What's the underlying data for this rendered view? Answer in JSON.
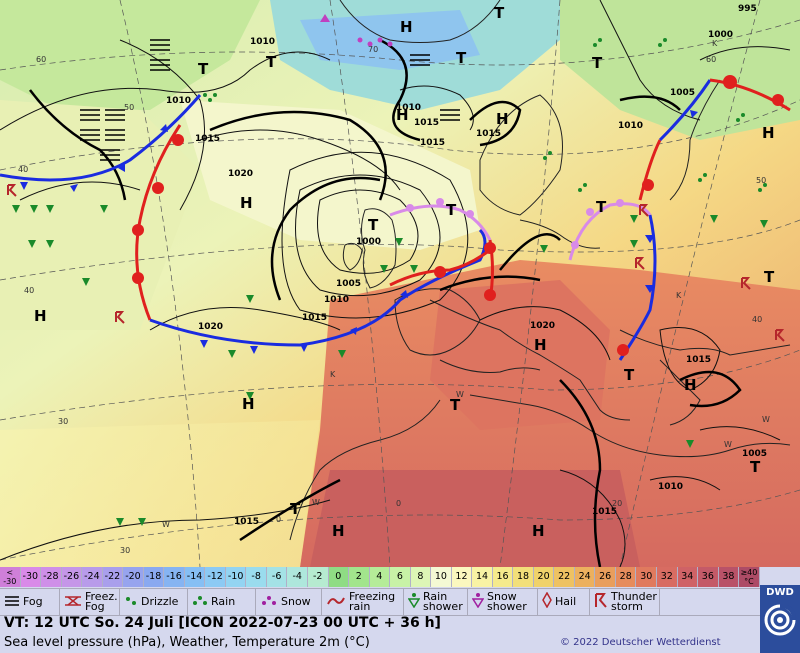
{
  "map": {
    "pressure_labels": [
      {
        "text": "995"
      },
      {
        "text": "1000"
      },
      {
        "text": "1005"
      },
      {
        "text": "1010"
      },
      {
        "text": "1015"
      },
      {
        "text": "1010"
      },
      {
        "text": "1010"
      },
      {
        "text": "1015"
      },
      {
        "text": "1020"
      },
      {
        "text": "1000"
      },
      {
        "text": "1005"
      },
      {
        "text": "1010"
      },
      {
        "text": "1015"
      },
      {
        "text": "1020"
      },
      {
        "text": "1020"
      },
      {
        "text": "1015"
      },
      {
        "text": "1015"
      },
      {
        "text": "1010"
      },
      {
        "text": "1005"
      },
      {
        "text": "1015"
      },
      {
        "text": "1015"
      },
      {
        "text": "1015"
      },
      {
        "text": "1010"
      }
    ],
    "systems": [
      {
        "text": "H"
      },
      {
        "text": "H"
      },
      {
        "text": "H"
      },
      {
        "text": "H"
      },
      {
        "text": "H"
      },
      {
        "text": "H"
      },
      {
        "text": "H"
      },
      {
        "text": "H"
      },
      {
        "text": "H"
      },
      {
        "text": "H"
      },
      {
        "text": "H"
      },
      {
        "text": "T"
      },
      {
        "text": "T"
      },
      {
        "text": "T"
      },
      {
        "text": "T"
      },
      {
        "text": "T"
      },
      {
        "text": "T"
      },
      {
        "text": "T"
      },
      {
        "text": "T"
      },
      {
        "text": "T"
      },
      {
        "text": "T"
      },
      {
        "text": "T"
      },
      {
        "text": "T"
      },
      {
        "text": "T"
      }
    ],
    "degree_labels": [
      {
        "text": "60"
      },
      {
        "text": "50"
      },
      {
        "text": "40"
      },
      {
        "text": "40"
      },
      {
        "text": "30"
      },
      {
        "text": "30"
      },
      {
        "text": "70"
      },
      {
        "text": "60"
      },
      {
        "text": "50"
      },
      {
        "text": "40"
      },
      {
        "text": "20"
      },
      {
        "text": "0"
      },
      {
        "text": "0"
      }
    ],
    "wind_marks": [
      {
        "text": "K"
      },
      {
        "text": "K"
      },
      {
        "text": "K"
      },
      {
        "text": "W"
      },
      {
        "text": "W"
      },
      {
        "text": "W"
      },
      {
        "text": "W"
      },
      {
        "text": "W"
      }
    ]
  },
  "legend": {
    "temp_scale": [
      {
        "label": "<\n-30",
        "color": "#cf7fd9"
      },
      {
        "label": "-30",
        "color": "#d98ae8"
      },
      {
        "label": "-28",
        "color": "#cf8fe8"
      },
      {
        "label": "-26",
        "color": "#c596e8"
      },
      {
        "label": "-24",
        "color": "#b89bea"
      },
      {
        "label": "-22",
        "color": "#a99fec"
      },
      {
        "label": "-20",
        "color": "#97a4ee"
      },
      {
        "label": "-18",
        "color": "#8aa9f0"
      },
      {
        "label": "-16",
        "color": "#86b4f2"
      },
      {
        "label": "-14",
        "color": "#86bff4"
      },
      {
        "label": "-12",
        "color": "#8ccaf4"
      },
      {
        "label": "-10",
        "color": "#93d4f2"
      },
      {
        "label": "-8",
        "color": "#9adcee"
      },
      {
        "label": "-6",
        "color": "#a4e2e6"
      },
      {
        "label": "-4",
        "color": "#aee7dc"
      },
      {
        "label": "-2",
        "color": "#b6ebd0"
      },
      {
        "label": "0",
        "color": "#8fdc84"
      },
      {
        "label": "2",
        "color": "#a2e58c"
      },
      {
        "label": "4",
        "color": "#b5ec98"
      },
      {
        "label": "6",
        "color": "#c8f2a6"
      },
      {
        "label": "8",
        "color": "#ddf6b6"
      },
      {
        "label": "10",
        "color": "#f4f9d4"
      },
      {
        "label": "12",
        "color": "#fbf8bf"
      },
      {
        "label": "14",
        "color": "#f8f3a4"
      },
      {
        "label": "16",
        "color": "#f5ea8c"
      },
      {
        "label": "18",
        "color": "#f2df79"
      },
      {
        "label": "20",
        "color": "#f0d26a"
      },
      {
        "label": "22",
        "color": "#eec262"
      },
      {
        "label": "24",
        "color": "#ecb05e"
      },
      {
        "label": "26",
        "color": "#e99e5c"
      },
      {
        "label": "28",
        "color": "#e68c5c"
      },
      {
        "label": "30",
        "color": "#e07a5e"
      },
      {
        "label": "32",
        "color": "#d86c62"
      },
      {
        "label": "34",
        "color": "#cf6266"
      },
      {
        "label": "36",
        "color": "#c45a68"
      },
      {
        "label": "38",
        "color": "#b95268"
      },
      {
        "label": "≥40\n°C",
        "color": "#ad4b66"
      }
    ],
    "weather_keys": [
      {
        "label": "Fog",
        "icon": "fog-icon"
      },
      {
        "label": "Freez.\nFog",
        "icon": "freezing-fog-icon"
      },
      {
        "label": "Drizzle",
        "icon": "drizzle-icon"
      },
      {
        "label": "Rain",
        "icon": "rain-icon"
      },
      {
        "label": "Snow",
        "icon": "snow-icon"
      },
      {
        "label": "Freezing\nrain",
        "icon": "freezing-rain-icon"
      },
      {
        "label": "Rain\nshower",
        "icon": "rain-shower-icon"
      },
      {
        "label": "Snow\nshower",
        "icon": "snow-shower-icon"
      },
      {
        "label": "Hail",
        "icon": "hail-icon"
      },
      {
        "label": "Thunder\nstorm",
        "icon": "thunderstorm-icon"
      }
    ],
    "valid_time": "VT: 12 UTC So.  24 Juli [ICON 2022-07-23  00 UTC + 36 h]",
    "subtitle": "Sea level pressure (hPa), Weather, Temperature 2m (°C)",
    "copyright": "© 2022 Deutscher Wetterdienst",
    "logo_text": "DWD"
  }
}
